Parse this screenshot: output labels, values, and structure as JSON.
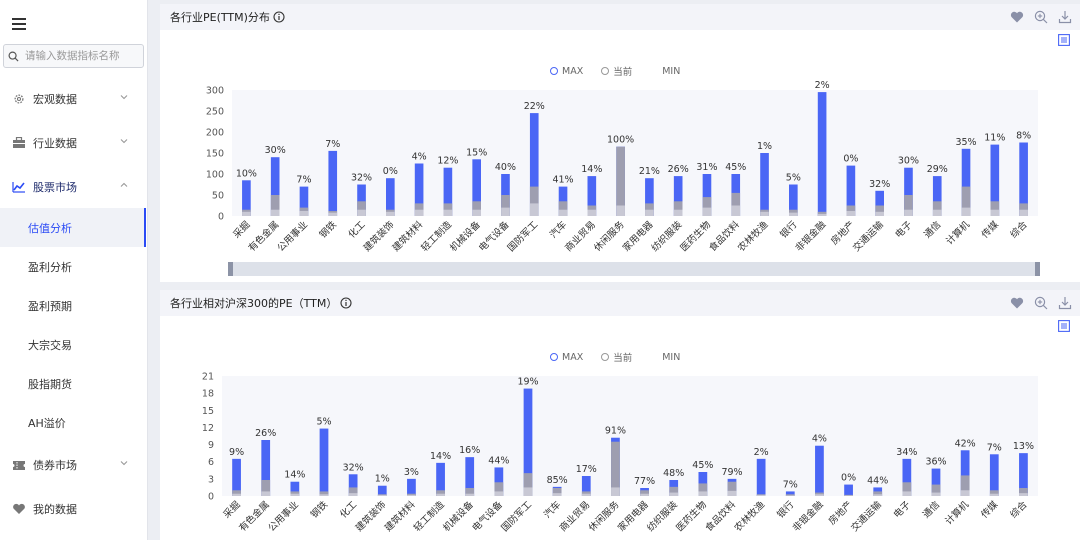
{
  "sidebar": {
    "search_placeholder": "请输入数据指标名称",
    "items": [
      {
        "label": "宏观数据",
        "icon": "gear-icon"
      },
      {
        "label": "行业数据",
        "icon": "briefcase-icon"
      },
      {
        "label": "股票市场",
        "icon": "chart-up-icon"
      },
      {
        "label": "债券市场",
        "icon": "ticket-icon"
      },
      {
        "label": "我的数据",
        "icon": "heart-icon"
      }
    ],
    "sub_items": [
      "估值分析",
      "盈利分析",
      "盈利预期",
      "大宗交易",
      "股指期货",
      "AH溢价"
    ],
    "accent": "#2b4bf5"
  },
  "legend": {
    "max": "MAX",
    "current": "当前",
    "min": "MIN"
  },
  "colors": {
    "max": "#4a66f5",
    "current": "#9e9eb0",
    "min": "#c8c8d4"
  },
  "chart_data": [
    {
      "type": "bar",
      "title": "各行业PE(TTM)分布",
      "ylim": [
        0,
        300
      ],
      "yticks": [
        0,
        50,
        100,
        150,
        200,
        250,
        300
      ],
      "categories": [
        "采掘",
        "有色金属",
        "公用事业",
        "钢铁",
        "化工",
        "建筑装饰",
        "建筑材料",
        "轻工制造",
        "机械设备",
        "电气设备",
        "国防军工",
        "汽车",
        "商业贸易",
        "休闲服务",
        "家用电器",
        "纺织服装",
        "医药生物",
        "食品饮料",
        "农林牧渔",
        "银行",
        "非银金融",
        "房地产",
        "交通运输",
        "电子",
        "通信",
        "计算机",
        "传媒",
        "综合"
      ],
      "labels": [
        "10%",
        "30%",
        "7%",
        "7%",
        "32%",
        "0%",
        "4%",
        "12%",
        "15%",
        "40%",
        "22%",
        "41%",
        "14%",
        "100%",
        "21%",
        "26%",
        "31%",
        "45%",
        "1%",
        "5%",
        "2%",
        "0%",
        "32%",
        "30%",
        "29%",
        "35%",
        "11%",
        "8%"
      ],
      "series": [
        {
          "name": "MAX",
          "values": [
            85,
            140,
            70,
            155,
            75,
            90,
            125,
            115,
            135,
            100,
            245,
            70,
            95,
            165,
            90,
            95,
            100,
            100,
            150,
            75,
            295,
            120,
            60,
            115,
            95,
            160,
            170,
            175
          ]
        },
        {
          "name": "当前",
          "values": [
            15,
            50,
            20,
            12,
            35,
            15,
            30,
            30,
            35,
            50,
            70,
            35,
            25,
            165,
            30,
            35,
            45,
            55,
            15,
            15,
            10,
            25,
            25,
            50,
            35,
            70,
            35,
            30
          ]
        },
        {
          "name": "MIN",
          "values": [
            10,
            15,
            12,
            8,
            15,
            10,
            15,
            15,
            15,
            20,
            30,
            15,
            15,
            25,
            15,
            15,
            20,
            25,
            10,
            8,
            5,
            12,
            10,
            15,
            15,
            20,
            15,
            15
          ]
        }
      ]
    },
    {
      "type": "bar",
      "title": "各行业相对沪深300的PE（TTM）",
      "ylim": [
        0,
        21
      ],
      "yticks": [
        0,
        3,
        6,
        9,
        12,
        15,
        18,
        21
      ],
      "categories": [
        "采掘",
        "有色金属",
        "公用事业",
        "钢铁",
        "化工",
        "建筑装饰",
        "建筑材料",
        "轻工制造",
        "机械设备",
        "电气设备",
        "国防军工",
        "汽车",
        "商业贸易",
        "休闲服务",
        "家用电器",
        "纺织服装",
        "医药生物",
        "食品饮料",
        "农林牧渔",
        "银行",
        "非银金融",
        "房地产",
        "交通运输",
        "电子",
        "通信",
        "计算机",
        "传媒",
        "综合"
      ],
      "labels": [
        "9%",
        "26%",
        "14%",
        "5%",
        "32%",
        "1%",
        "3%",
        "14%",
        "16%",
        "44%",
        "19%",
        "85%",
        "17%",
        "91%",
        "77%",
        "48%",
        "45%",
        "79%",
        "2%",
        "7%",
        "4%",
        "0%",
        "44%",
        "34%",
        "36%",
        "42%",
        "7%",
        "13%"
      ],
      "series": [
        {
          "name": "MAX",
          "values": [
            6.5,
            9.8,
            2.5,
            11.8,
            3.8,
            1.8,
            3.0,
            5.8,
            6.8,
            5.0,
            18.8,
            1.6,
            3.5,
            10.2,
            1.4,
            2.8,
            4.2,
            3.0,
            6.5,
            0.8,
            8.8,
            2.0,
            1.5,
            6.5,
            4.8,
            8.0,
            7.3,
            7.5
          ]
        },
        {
          "name": "当前",
          "values": [
            1.0,
            2.8,
            0.8,
            0.8,
            1.5,
            0.3,
            0.4,
            1.0,
            1.4,
            2.4,
            4.0,
            1.4,
            0.8,
            9.5,
            1.0,
            1.6,
            2.2,
            2.5,
            0.3,
            0.3,
            0.6,
            0.2,
            0.8,
            2.4,
            2.0,
            3.6,
            1.0,
            1.4
          ]
        },
        {
          "name": "MIN",
          "values": [
            0.4,
            0.8,
            0.4,
            0.3,
            0.5,
            0.2,
            0.2,
            0.4,
            0.4,
            0.8,
            1.5,
            0.5,
            0.4,
            1.5,
            0.4,
            0.6,
            0.8,
            0.9,
            0.2,
            0.1,
            0.3,
            0.1,
            0.3,
            0.8,
            0.6,
            1.0,
            0.4,
            0.5
          ]
        }
      ]
    }
  ]
}
